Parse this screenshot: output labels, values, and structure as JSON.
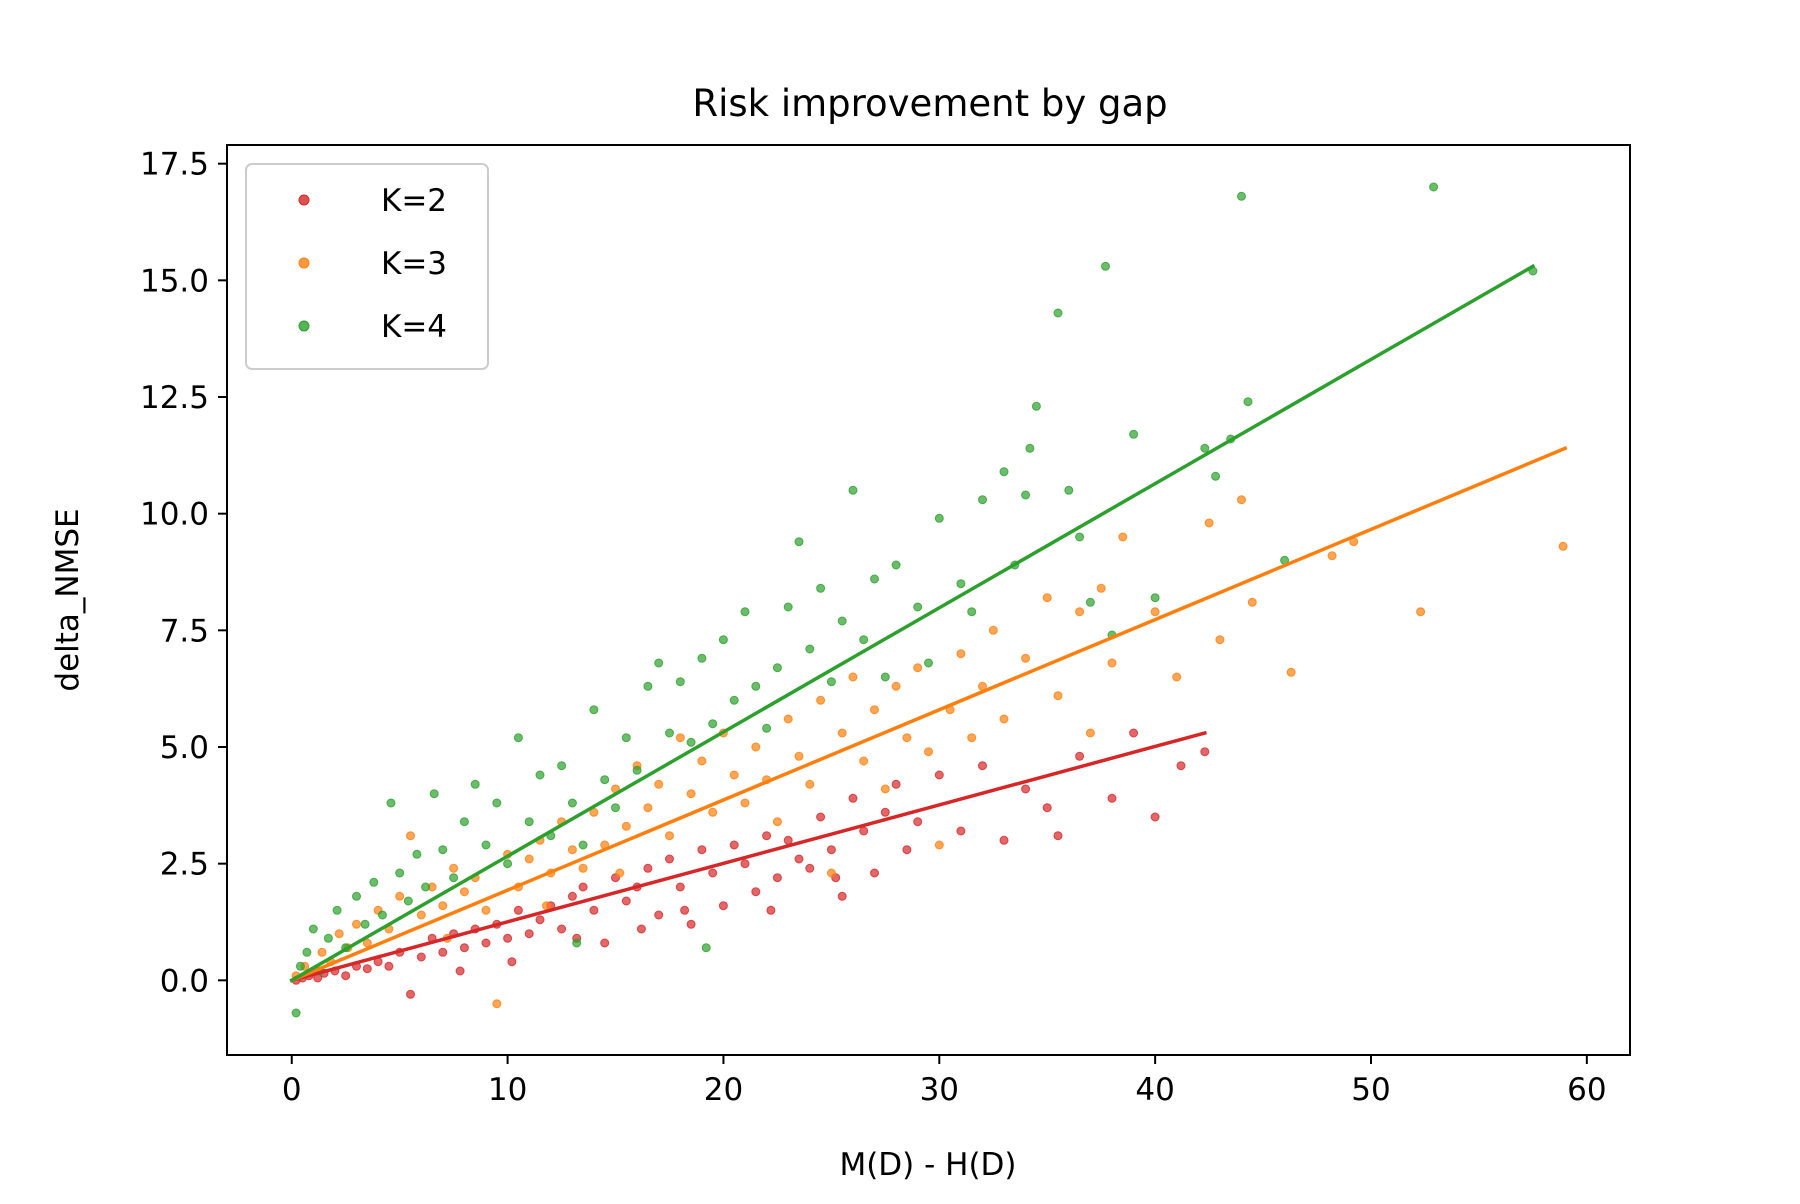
{
  "chart_data": {
    "type": "scatter",
    "title": "Risk improvement by gap",
    "xlabel": "M(D) - H(D)",
    "ylabel": "delta_NMSE",
    "xlim": [
      -3,
      62
    ],
    "ylim": [
      -1.6,
      17.9
    ],
    "xticks": [
      0,
      10,
      20,
      30,
      40,
      50,
      60
    ],
    "xtick_labels": [
      "0",
      "10",
      "20",
      "30",
      "40",
      "50",
      "60"
    ],
    "yticks": [
      0.0,
      2.5,
      5.0,
      7.5,
      10.0,
      12.5,
      15.0,
      17.5
    ],
    "ytick_labels": [
      "0.0",
      "2.5",
      "5.0",
      "7.5",
      "10.0",
      "12.5",
      "15.0",
      "17.5"
    ],
    "grid": false,
    "legend_position": "upper left",
    "series": [
      {
        "name": "K=2",
        "color": "#d62728",
        "fit_line": {
          "x": [
            0,
            42.3
          ],
          "y": [
            0.0,
            5.3
          ]
        },
        "points": [
          [
            0.2,
            0.0
          ],
          [
            0.5,
            0.05
          ],
          [
            0.8,
            0.1
          ],
          [
            1.2,
            0.05
          ],
          [
            1.5,
            0.15
          ],
          [
            2.0,
            0.2
          ],
          [
            2.5,
            0.1
          ],
          [
            3.0,
            0.3
          ],
          [
            3.5,
            0.25
          ],
          [
            4.0,
            0.4
          ],
          [
            4.5,
            0.3
          ],
          [
            5.0,
            0.6
          ],
          [
            5.5,
            -0.3
          ],
          [
            6.0,
            0.5
          ],
          [
            6.5,
            0.9
          ],
          [
            7.0,
            0.6
          ],
          [
            7.5,
            1.0
          ],
          [
            8.0,
            0.7
          ],
          [
            8.5,
            1.1
          ],
          [
            9.0,
            0.8
          ],
          [
            9.5,
            1.2
          ],
          [
            10.0,
            0.9
          ],
          [
            10.5,
            1.5
          ],
          [
            11.0,
            1.0
          ],
          [
            11.5,
            1.3
          ],
          [
            12.0,
            1.6
          ],
          [
            12.5,
            1.1
          ],
          [
            13.0,
            1.8
          ],
          [
            13.5,
            2.0
          ],
          [
            14.0,
            1.5
          ],
          [
            14.5,
            0.8
          ],
          [
            15.0,
            2.2
          ],
          [
            15.5,
            1.7
          ],
          [
            16.0,
            2.0
          ],
          [
            16.5,
            2.4
          ],
          [
            17.0,
            1.4
          ],
          [
            17.5,
            2.6
          ],
          [
            18.0,
            2.0
          ],
          [
            18.5,
            1.2
          ],
          [
            19.0,
            2.8
          ],
          [
            19.5,
            2.3
          ],
          [
            20.0,
            1.6
          ],
          [
            20.5,
            2.9
          ],
          [
            21.0,
            2.5
          ],
          [
            21.5,
            1.9
          ],
          [
            22.0,
            3.1
          ],
          [
            22.5,
            2.2
          ],
          [
            23.0,
            3.0
          ],
          [
            23.5,
            2.6
          ],
          [
            24.0,
            2.4
          ],
          [
            24.5,
            3.5
          ],
          [
            25.0,
            2.8
          ],
          [
            25.5,
            1.8
          ],
          [
            26.0,
            3.9
          ],
          [
            26.5,
            3.2
          ],
          [
            27.0,
            2.3
          ],
          [
            27.5,
            3.6
          ],
          [
            28.0,
            4.2
          ],
          [
            28.5,
            2.8
          ],
          [
            29.0,
            3.4
          ],
          [
            30.0,
            4.4
          ],
          [
            31.0,
            3.2
          ],
          [
            32.0,
            4.6
          ],
          [
            33.0,
            3.0
          ],
          [
            34.0,
            4.1
          ],
          [
            35.0,
            3.7
          ],
          [
            35.5,
            3.1
          ],
          [
            36.5,
            4.8
          ],
          [
            38.0,
            3.9
          ],
          [
            39.0,
            5.3
          ],
          [
            40.0,
            3.5
          ],
          [
            41.2,
            4.6
          ],
          [
            42.3,
            4.9
          ],
          [
            18.2,
            1.5
          ],
          [
            13.2,
            0.9
          ],
          [
            10.2,
            0.4
          ],
          [
            7.8,
            0.2
          ],
          [
            22.2,
            1.5
          ],
          [
            25.2,
            2.2
          ],
          [
            16.2,
            1.1
          ]
        ]
      },
      {
        "name": "K=3",
        "color": "#ff7f0e",
        "fit_line": {
          "x": [
            0,
            59.0
          ],
          "y": [
            0.0,
            11.4
          ]
        },
        "points": [
          [
            0.2,
            0.1
          ],
          [
            0.6,
            0.3
          ],
          [
            1.0,
            0.2
          ],
          [
            1.4,
            0.6
          ],
          [
            1.8,
            0.4
          ],
          [
            2.2,
            1.0
          ],
          [
            2.6,
            0.7
          ],
          [
            3.0,
            1.2
          ],
          [
            3.5,
            0.8
          ],
          [
            4.0,
            1.5
          ],
          [
            4.5,
            1.1
          ],
          [
            5.0,
            1.8
          ],
          [
            5.5,
            3.1
          ],
          [
            6.0,
            1.4
          ],
          [
            6.5,
            2.0
          ],
          [
            7.0,
            1.6
          ],
          [
            7.5,
            2.4
          ],
          [
            8.0,
            1.9
          ],
          [
            8.5,
            2.2
          ],
          [
            9.0,
            1.5
          ],
          [
            9.5,
            -0.5
          ],
          [
            10.0,
            2.7
          ],
          [
            10.5,
            2.0
          ],
          [
            11.0,
            2.6
          ],
          [
            11.5,
            3.0
          ],
          [
            12.0,
            2.3
          ],
          [
            12.5,
            3.4
          ],
          [
            13.0,
            2.8
          ],
          [
            13.5,
            2.4
          ],
          [
            14.0,
            3.6
          ],
          [
            14.5,
            2.9
          ],
          [
            15.0,
            4.1
          ],
          [
            15.5,
            3.3
          ],
          [
            16.0,
            4.6
          ],
          [
            16.5,
            3.7
          ],
          [
            17.0,
            4.2
          ],
          [
            17.5,
            3.1
          ],
          [
            18.0,
            5.2
          ],
          [
            18.5,
            4.0
          ],
          [
            19.0,
            4.7
          ],
          [
            19.5,
            3.6
          ],
          [
            20.0,
            5.3
          ],
          [
            20.5,
            4.4
          ],
          [
            21.0,
            3.8
          ],
          [
            21.5,
            5.0
          ],
          [
            22.0,
            4.3
          ],
          [
            22.5,
            3.4
          ],
          [
            23.0,
            5.6
          ],
          [
            23.5,
            4.8
          ],
          [
            24.0,
            4.2
          ],
          [
            24.5,
            6.0
          ],
          [
            25.0,
            2.3
          ],
          [
            25.5,
            5.3
          ],
          [
            26.0,
            6.5
          ],
          [
            26.5,
            4.7
          ],
          [
            27.0,
            5.8
          ],
          [
            27.5,
            4.1
          ],
          [
            28.0,
            6.3
          ],
          [
            28.5,
            5.2
          ],
          [
            29.0,
            6.7
          ],
          [
            29.5,
            4.9
          ],
          [
            30.0,
            2.9
          ],
          [
            30.5,
            5.8
          ],
          [
            31.0,
            7.0
          ],
          [
            31.5,
            5.2
          ],
          [
            32.0,
            6.3
          ],
          [
            32.5,
            7.5
          ],
          [
            33.0,
            5.6
          ],
          [
            34.0,
            6.9
          ],
          [
            35.0,
            8.2
          ],
          [
            35.5,
            6.1
          ],
          [
            36.5,
            7.9
          ],
          [
            37.0,
            5.3
          ],
          [
            37.5,
            8.4
          ],
          [
            38.0,
            6.8
          ],
          [
            38.5,
            9.5
          ],
          [
            40.0,
            7.9
          ],
          [
            41.0,
            6.5
          ],
          [
            42.5,
            9.8
          ],
          [
            43.0,
            7.3
          ],
          [
            44.0,
            10.3
          ],
          [
            44.5,
            8.1
          ],
          [
            46.3,
            6.6
          ],
          [
            48.2,
            9.1
          ],
          [
            49.2,
            9.4
          ],
          [
            52.3,
            7.9
          ],
          [
            58.9,
            9.3
          ],
          [
            11.8,
            1.6
          ],
          [
            15.2,
            2.3
          ],
          [
            7.2,
            0.9
          ]
        ]
      },
      {
        "name": "K=4",
        "color": "#2ca02c",
        "fit_line": {
          "x": [
            0,
            57.5
          ],
          "y": [
            0.0,
            15.3
          ]
        },
        "points": [
          [
            0.2,
            -0.7
          ],
          [
            0.4,
            0.3
          ],
          [
            0.7,
            0.6
          ],
          [
            1.0,
            1.1
          ],
          [
            1.3,
            0.2
          ],
          [
            1.7,
            0.9
          ],
          [
            2.1,
            1.5
          ],
          [
            2.5,
            0.7
          ],
          [
            3.0,
            1.8
          ],
          [
            3.4,
            1.2
          ],
          [
            3.8,
            2.1
          ],
          [
            4.2,
            1.4
          ],
          [
            4.6,
            3.8
          ],
          [
            5.0,
            2.3
          ],
          [
            5.4,
            1.7
          ],
          [
            5.8,
            2.7
          ],
          [
            6.2,
            2.0
          ],
          [
            6.6,
            4.0
          ],
          [
            7.0,
            2.8
          ],
          [
            7.5,
            2.2
          ],
          [
            8.0,
            3.4
          ],
          [
            8.5,
            4.2
          ],
          [
            9.0,
            2.9
          ],
          [
            9.5,
            3.8
          ],
          [
            10.0,
            2.5
          ],
          [
            10.5,
            5.2
          ],
          [
            11.0,
            3.4
          ],
          [
            11.5,
            4.4
          ],
          [
            12.0,
            3.1
          ],
          [
            12.5,
            4.6
          ],
          [
            13.0,
            3.8
          ],
          [
            13.5,
            2.9
          ],
          [
            14.0,
            5.8
          ],
          [
            14.5,
            4.3
          ],
          [
            15.0,
            3.7
          ],
          [
            15.5,
            5.2
          ],
          [
            16.0,
            4.5
          ],
          [
            16.5,
            6.3
          ],
          [
            17.0,
            6.8
          ],
          [
            17.5,
            5.3
          ],
          [
            18.0,
            6.4
          ],
          [
            18.5,
            5.1
          ],
          [
            19.0,
            6.9
          ],
          [
            19.5,
            5.5
          ],
          [
            20.0,
            7.3
          ],
          [
            20.5,
            6.0
          ],
          [
            21.0,
            7.9
          ],
          [
            21.5,
            6.3
          ],
          [
            22.0,
            5.4
          ],
          [
            22.5,
            6.7
          ],
          [
            23.0,
            8.0
          ],
          [
            23.5,
            9.4
          ],
          [
            24.0,
            7.1
          ],
          [
            24.5,
            8.4
          ],
          [
            25.0,
            6.4
          ],
          [
            25.5,
            7.7
          ],
          [
            26.0,
            10.5
          ],
          [
            26.5,
            7.3
          ],
          [
            27.0,
            8.6
          ],
          [
            27.5,
            6.5
          ],
          [
            28.0,
            8.9
          ],
          [
            29.0,
            8.0
          ],
          [
            29.5,
            6.8
          ],
          [
            30.0,
            9.9
          ],
          [
            31.0,
            8.5
          ],
          [
            31.5,
            7.9
          ],
          [
            32.0,
            10.3
          ],
          [
            33.0,
            10.9
          ],
          [
            33.5,
            8.9
          ],
          [
            34.0,
            10.4
          ],
          [
            34.5,
            12.3
          ],
          [
            34.2,
            11.4
          ],
          [
            35.5,
            14.3
          ],
          [
            36.0,
            10.5
          ],
          [
            36.5,
            9.5
          ],
          [
            37.0,
            8.1
          ],
          [
            37.7,
            15.3
          ],
          [
            38.0,
            7.4
          ],
          [
            39.0,
            11.7
          ],
          [
            40.0,
            8.2
          ],
          [
            42.3,
            11.4
          ],
          [
            42.8,
            10.8
          ],
          [
            43.5,
            11.6
          ],
          [
            44.0,
            16.8
          ],
          [
            44.3,
            12.4
          ],
          [
            46.0,
            9.0
          ],
          [
            52.9,
            17.0
          ],
          [
            57.5,
            15.2
          ],
          [
            19.2,
            0.7
          ],
          [
            13.2,
            0.8
          ]
        ]
      }
    ]
  }
}
